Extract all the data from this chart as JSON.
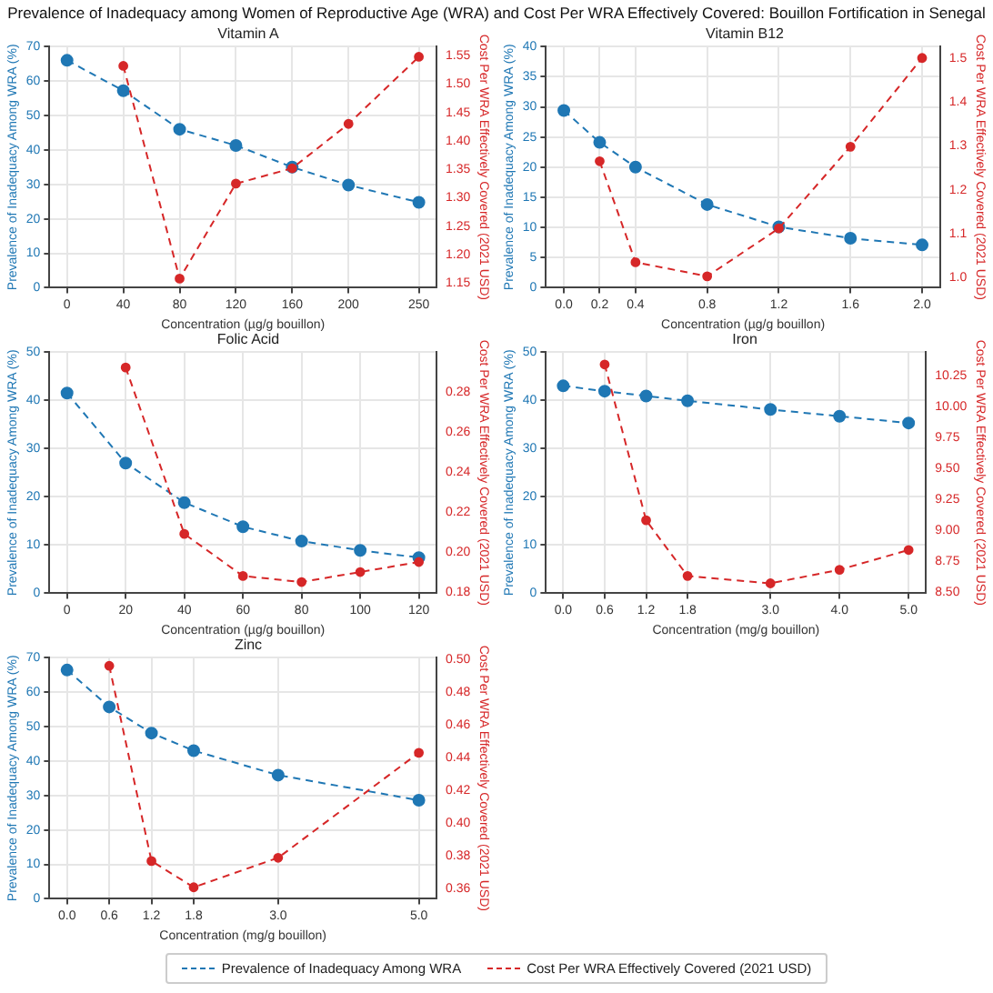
{
  "chart_data": [
    {
      "type": "line",
      "title": "Vitamin A",
      "annotations": [
        "Prevalence of Inadequacy among Women of Reproductive Age (WRA) and Cost Per WRA Effectively Covered: Bouillon Fortification in Senegal"
      ],
      "xlabel": "Concentration (µg/g bouillon)",
      "ylabel": "Prevalence of Inadequacy Among WRA (%)",
      "y2label": "Cost Per WRA Effectively Covered (2021 USD)",
      "xlim": [
        -12.5,
        262.5
      ],
      "xticks": [
        0,
        40,
        80,
        120,
        160,
        200,
        250
      ],
      "ylim": [
        0,
        70
      ],
      "yticks": [
        0,
        10,
        20,
        30,
        40,
        50,
        60,
        70
      ],
      "y2lim": [
        1.142,
        1.566
      ],
      "y2ticks": [
        1.15,
        {
          "value": 1.2,
          "label": "1.20"
        },
        1.25,
        {
          "value": 1.3,
          "label": "1.30"
        },
        1.35,
        {
          "value": 1.4,
          "label": "1.40"
        },
        1.45,
        {
          "value": 1.5,
          "label": "1.50"
        },
        1.55
      ],
      "grid": true,
      "legend": "bottom",
      "marker": "circle",
      "line_style": "dashed",
      "series": [
        {
          "name": "Prevalence of Inadequacy Among WRA",
          "color": "#1f77b4",
          "x": [
            0,
            40,
            80,
            120,
            160,
            200,
            250
          ],
          "values": [
            66,
            57.2,
            46,
            41.3,
            35,
            29.8,
            24.8
          ]
        },
        {
          "name": "Cost Per WRA Effectively Covered (2021 USD)",
          "color": "#d62728",
          "axis": "y2",
          "x": [
            40,
            80,
            120,
            160,
            200,
            250
          ],
          "values": [
            1.532,
            1.158,
            1.325,
            1.352,
            1.43,
            1.548
          ]
        }
      ]
    },
    {
      "type": "line",
      "title": "Vitamin B12",
      "xlabel": "Concentration (µg/g bouillon)",
      "ylabel": "Prevalence of Inadequacy Among WRA (%)",
      "y2label": "Cost Per WRA Effectively Covered (2021 USD)",
      "xlim": [
        -0.1,
        2.1
      ],
      "xticks": [
        {
          "value": 0,
          "label": "0.0"
        },
        0.2,
        0.4,
        0.8,
        1.2,
        1.6,
        {
          "value": 2,
          "label": "2.0"
        }
      ],
      "ylim": [
        0,
        40
      ],
      "yticks": [
        0,
        5,
        10,
        15,
        20,
        25,
        30,
        35,
        40
      ],
      "y2lim": [
        0.977,
        1.526
      ],
      "y2ticks": [
        {
          "value": 1,
          "label": "1.0"
        },
        1.1,
        1.2,
        1.3,
        1.4,
        1.5
      ],
      "grid": true,
      "legend": false,
      "marker": "circle",
      "line_style": "dashed",
      "series": [
        {
          "color": "#1f77b4",
          "x": [
            0,
            0.2,
            0.4,
            0.8,
            1.2,
            1.6,
            2.0
          ],
          "values": [
            29.4,
            24.1,
            20,
            13.8,
            10.1,
            8.2,
            7.1
          ]
        },
        {
          "color": "#d62728",
          "axis": "y2",
          "x": [
            0.2,
            0.4,
            0.8,
            1.2,
            1.6,
            2.0
          ],
          "values": [
            1.265,
            1.035,
            1.003,
            1.112,
            1.298,
            1.5
          ]
        }
      ]
    },
    {
      "type": "line",
      "title": "Folic Acid",
      "xlabel": "Concentration (µg/g bouillon)",
      "ylabel": "Prevalence of Inadequacy Among WRA (%)",
      "y2label": "Cost Per WRA Effectively Covered (2021 USD)",
      "xlim": [
        -6,
        126
      ],
      "xticks": [
        0,
        20,
        40,
        60,
        80,
        100,
        120
      ],
      "ylim": [
        0,
        50
      ],
      "yticks": [
        0,
        10,
        20,
        30,
        40,
        50
      ],
      "y2lim": [
        0.1794,
        0.2997
      ],
      "y2ticks": [
        0.18,
        {
          "value": 0.2,
          "label": "0.20"
        },
        0.22,
        0.24,
        0.26,
        0.28
      ],
      "grid": true,
      "legend": false,
      "marker": "circle",
      "line_style": "dashed",
      "series": [
        {
          "color": "#1f77b4",
          "x": [
            0,
            20,
            40,
            60,
            80,
            100,
            120
          ],
          "values": [
            41.5,
            27,
            18.8,
            13.8,
            10.8,
            8.9,
            7.4
          ]
        },
        {
          "color": "#d62728",
          "axis": "y2",
          "x": [
            20,
            40,
            60,
            80,
            100,
            120
          ],
          "values": [
            0.292,
            0.209,
            0.188,
            0.185,
            0.19,
            0.195
          ]
        }
      ]
    },
    {
      "type": "line",
      "title": "Iron",
      "xlabel": "Concentration (mg/g bouillon)",
      "ylabel": "Prevalence of Inadequacy Among WRA (%)",
      "y2label": "Cost Per WRA Effectively Covered (2021 USD)",
      "xlim": [
        -0.25,
        5.25
      ],
      "xticks": [
        {
          "value": 0,
          "label": "0.0"
        },
        0.6,
        1.2,
        1.8,
        {
          "value": 3,
          "label": "3.0"
        },
        {
          "value": 4,
          "label": "4.0"
        },
        {
          "value": 5,
          "label": "5.0"
        }
      ],
      "ylim": [
        0,
        50
      ],
      "yticks": [
        0,
        10,
        20,
        30,
        40,
        50
      ],
      "y2lim": [
        8.49,
        10.44
      ],
      "y2ticks": [
        {
          "value": 8.5,
          "label": "8.50"
        },
        8.75,
        {
          "value": 9,
          "label": "9.00"
        },
        9.25,
        {
          "value": 9.5,
          "label": "9.50"
        },
        9.75,
        {
          "value": 10,
          "label": "10.00"
        },
        10.25
      ],
      "grid": true,
      "legend": false,
      "marker": "circle",
      "line_style": "dashed",
      "series": [
        {
          "color": "#1f77b4",
          "x": [
            0,
            0.6,
            1.2,
            1.8,
            3.0,
            4.0,
            5.0
          ],
          "values": [
            43,
            41.9,
            40.9,
            39.9,
            38.1,
            36.7,
            35.3
          ]
        },
        {
          "color": "#d62728",
          "axis": "y2",
          "x": [
            0.6,
            1.2,
            1.8,
            3.0,
            4.0,
            5.0
          ],
          "values": [
            10.34,
            9.08,
            8.63,
            8.57,
            8.68,
            8.84
          ]
        }
      ]
    },
    {
      "type": "line",
      "title": "Zinc",
      "xlabel": "Concentration (mg/g bouillon)",
      "ylabel": "Prevalence of Inadequacy Among WRA (%)",
      "y2label": "Cost Per WRA Effectively Covered (2021 USD)",
      "xlim": [
        -0.25,
        5.25
      ],
      "xticks": [
        {
          "value": 0,
          "label": "0.0"
        },
        0.6,
        1.2,
        1.8,
        {
          "value": 3,
          "label": "3.0"
        },
        {
          "value": 5,
          "label": "5.0"
        }
      ],
      "ylim": [
        0,
        70
      ],
      "yticks": [
        0,
        10,
        20,
        30,
        40,
        50,
        60,
        70
      ],
      "y2lim": [
        0.354,
        0.501
      ],
      "y2ticks": [
        0.36,
        0.38,
        {
          "value": 0.4,
          "label": "0.40"
        },
        0.42,
        0.44,
        0.46,
        0.48,
        {
          "value": 0.5,
          "label": "0.50"
        }
      ],
      "grid": true,
      "legend": false,
      "marker": "circle",
      "line_style": "dashed",
      "series": [
        {
          "color": "#1f77b4",
          "x": [
            0,
            0.6,
            1.2,
            1.8,
            3.0,
            5.0
          ],
          "values": [
            66.4,
            55.7,
            48.1,
            43,
            35.9,
            28.6
          ]
        },
        {
          "color": "#d62728",
          "axis": "y2",
          "x": [
            0.6,
            1.2,
            1.8,
            3.0,
            5.0
          ],
          "values": [
            0.496,
            0.377,
            0.361,
            0.379,
            0.443
          ]
        }
      ]
    }
  ]
}
